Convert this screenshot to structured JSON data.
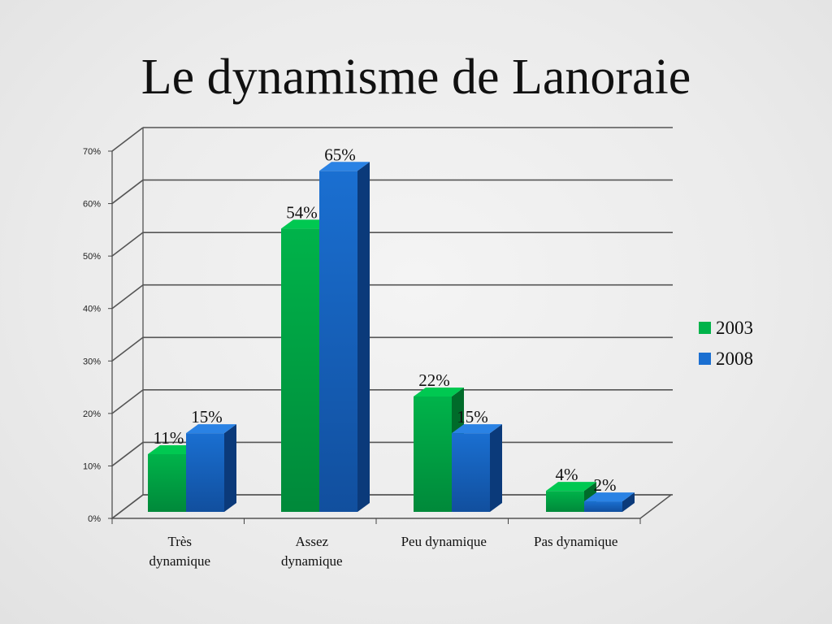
{
  "slide": {
    "title": "Le dynamisme de Lanoraie"
  },
  "colors": {
    "series_2003": "#00b34a",
    "series_2003_dark": "#006b2a",
    "series_2008": "#1a6fd1",
    "series_2008_dark": "#0b3a7a",
    "gridline": "#555555"
  },
  "chart_data": {
    "type": "bar",
    "style": "3d-clustered-column",
    "title": "",
    "xlabel": "",
    "ylabel": "",
    "categories": [
      [
        "Très",
        "dynamique"
      ],
      [
        "Assez",
        "dynamique"
      ],
      [
        "Peu dynamique"
      ],
      [
        "Pas dynamique"
      ]
    ],
    "series": [
      {
        "name": "2003",
        "values": [
          11,
          54,
          22,
          4
        ],
        "labels": [
          "11%",
          "54%",
          "22%",
          "4%"
        ]
      },
      {
        "name": "2008",
        "values": [
          15,
          65,
          15,
          2
        ],
        "labels": [
          "15%",
          "65%",
          "15%",
          "2%"
        ]
      }
    ],
    "ylim": [
      0,
      70
    ],
    "yticks": [
      0,
      10,
      20,
      30,
      40,
      50,
      60,
      70
    ],
    "ytick_labels": [
      "0%",
      "10%",
      "20%",
      "30%",
      "40%",
      "50%",
      "60%",
      "70%"
    ],
    "grid": true,
    "legend_position": "right"
  }
}
